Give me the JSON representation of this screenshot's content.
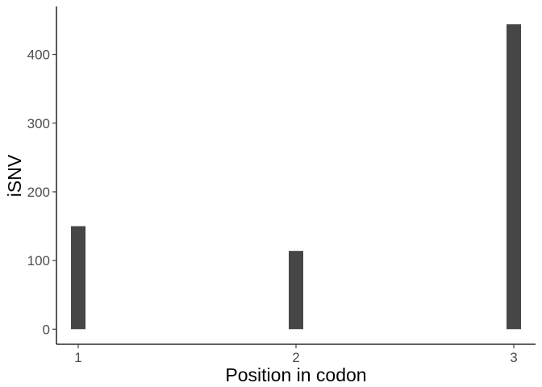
{
  "chart_data": {
    "type": "bar",
    "x_ticks": [
      "1",
      "2",
      "3"
    ],
    "categories": [
      1,
      2,
      3
    ],
    "values": [
      150,
      114,
      444
    ],
    "y_ticks": [
      "0",
      "100",
      "200",
      "300",
      "400"
    ],
    "xlabel": "Position in codon",
    "ylabel": "iSNV",
    "ylim": [
      -22,
      470
    ],
    "xlim": [
      0.9,
      3.1
    ],
    "bar_color": "#464646",
    "grid": false
  }
}
